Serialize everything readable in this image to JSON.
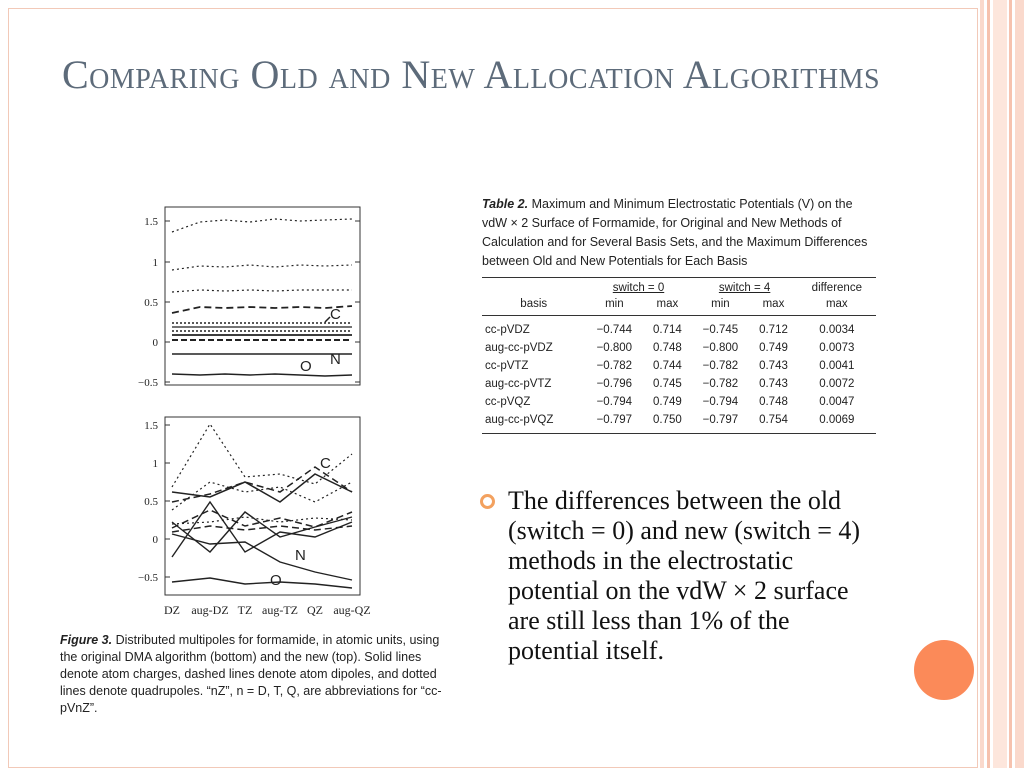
{
  "slide": {
    "title": "Comparing Old and New Allocation Algorithms",
    "colors": {
      "title": "#5d6b7a",
      "accent_orange": "#fb8a59",
      "bullet_ring": "#f3a15f",
      "stripe_light": "#fad9cc"
    }
  },
  "figure": {
    "top_panel": {
      "y_ticks": [
        "1.5",
        "1",
        "0.5",
        "0",
        "−0.5"
      ],
      "labels": [
        "C",
        "N",
        "O"
      ]
    },
    "bottom_panel": {
      "y_ticks": [
        "1.5",
        "1",
        "0.5",
        "0",
        "−0.5"
      ],
      "labels": [
        "C",
        "N",
        "O"
      ]
    },
    "x_labels": [
      "DZ",
      "aug-DZ",
      "TZ",
      "aug-TZ",
      "QZ",
      "aug-QZ"
    ],
    "caption_label": "Figure 3.",
    "caption_text": "Distributed multipoles for formamide, in atomic units, using the original DMA algorithm (bottom) and the new (top). Solid lines denote atom charges, dashed lines denote atom dipoles, and dotted lines denote quadrupoles. “nZ”, n = D, T, Q, are abbreviations for “cc-pVnZ”."
  },
  "table": {
    "caption_label": "Table 2.",
    "caption_text": "Maximum and Minimum Electrostatic Potentials (V) on the vdW × 2 Surface of Formamide, for Original and New Methods of Calculation and for Several Basis Sets, and the Maximum Differences between Old and New Potentials for Each Basis",
    "group_headers": {
      "switch0": "switch = 0",
      "switch4": "switch = 4",
      "difference": "difference"
    },
    "sub_headers": {
      "basis": "basis",
      "min1": "min",
      "max1": "max",
      "min2": "min",
      "max2": "max",
      "diffmax": "max"
    },
    "rows": [
      {
        "basis": "cc-pVDZ",
        "min0": "−0.744",
        "max0": "0.714",
        "min4": "−0.745",
        "max4": "0.712",
        "diff": "0.0034"
      },
      {
        "basis": "aug-cc-pVDZ",
        "min0": "−0.800",
        "max0": "0.748",
        "min4": "−0.800",
        "max4": "0.749",
        "diff": "0.0073"
      },
      {
        "basis": "cc-pVTZ",
        "min0": "−0.782",
        "max0": "0.744",
        "min4": "−0.782",
        "max4": "0.743",
        "diff": "0.0041"
      },
      {
        "basis": "aug-cc-pVTZ",
        "min0": "−0.796",
        "max0": "0.745",
        "min4": "−0.782",
        "max4": "0.743",
        "diff": "0.0072"
      },
      {
        "basis": "cc-pVQZ",
        "min0": "−0.794",
        "max0": "0.749",
        "min4": "−0.794",
        "max4": "0.748",
        "diff": "0.0047"
      },
      {
        "basis": "aug-cc-pVQZ",
        "min0": "−0.797",
        "max0": "0.750",
        "min4": "−0.797",
        "max4": "0.754",
        "diff": "0.0069"
      }
    ]
  },
  "bullet": {
    "text": "The differences between the old (switch = 0) and new (switch = 4) methods in the electrostatic potential on the vdW × 2 surface are still less than 1% of the potential itself."
  }
}
